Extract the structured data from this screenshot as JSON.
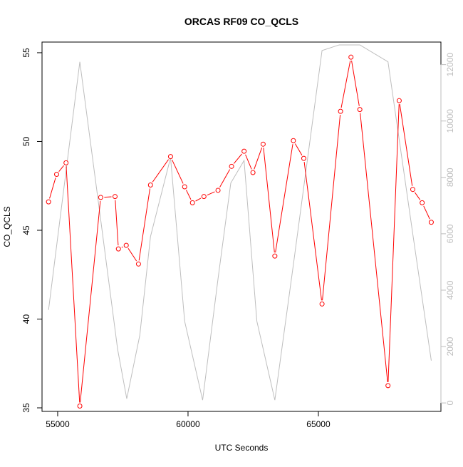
{
  "chart_data": {
    "type": "line",
    "title": "ORCAS RF09 CO_QCLS",
    "xlabel": "UTC Seconds",
    "ylabel": "CO_QCLS",
    "xlim": [
      54400,
      69700
    ],
    "ylim": [
      34.8,
      55.6
    ],
    "y2lim": [
      -300,
      12800
    ],
    "x_ticks": [
      55000,
      60000,
      65000
    ],
    "y_ticks": [
      35,
      40,
      45,
      50,
      55
    ],
    "y2_ticks": [
      0,
      2000,
      4000,
      6000,
      8000,
      10000,
      12000
    ],
    "series": [
      {
        "axis": "left",
        "color": "#ff0000",
        "markers": true,
        "points": [
          [
            54650,
            46.6
          ],
          [
            54960,
            48.15
          ],
          [
            55320,
            48.8
          ],
          [
            55850,
            35.1
          ],
          [
            56650,
            46.85
          ],
          [
            57200,
            46.9
          ],
          [
            57330,
            43.95
          ],
          [
            57630,
            44.15
          ],
          [
            58100,
            43.1
          ],
          [
            58560,
            47.55
          ],
          [
            59330,
            49.15
          ],
          [
            59870,
            47.45
          ],
          [
            60170,
            46.55
          ],
          [
            60610,
            46.9
          ],
          [
            61150,
            47.25
          ],
          [
            61670,
            48.6
          ],
          [
            62150,
            49.45
          ],
          [
            62490,
            48.25
          ],
          [
            62880,
            49.85
          ],
          [
            63330,
            43.55
          ],
          [
            64040,
            50.05
          ],
          [
            64440,
            49.05
          ],
          [
            65140,
            40.85
          ],
          [
            65850,
            51.7
          ],
          [
            66250,
            54.75
          ],
          [
            66590,
            51.8
          ],
          [
            67670,
            36.25
          ],
          [
            68100,
            52.3
          ],
          [
            68620,
            47.3
          ],
          [
            68980,
            46.55
          ],
          [
            69330,
            45.45
          ]
        ]
      },
      {
        "axis": "right",
        "color": "#bebebe",
        "markers": false,
        "points": [
          [
            54650,
            3300
          ],
          [
            55850,
            12100
          ],
          [
            56650,
            6500
          ],
          [
            57300,
            1900
          ],
          [
            57650,
            150
          ],
          [
            58150,
            2400
          ],
          [
            58560,
            5900
          ],
          [
            59330,
            8700
          ],
          [
            59870,
            2900
          ],
          [
            60560,
            100
          ],
          [
            61150,
            4400
          ],
          [
            61640,
            7800
          ],
          [
            62150,
            8600
          ],
          [
            62640,
            2900
          ],
          [
            63330,
            100
          ],
          [
            64040,
            4900
          ],
          [
            65140,
            12500
          ],
          [
            65800,
            12700
          ],
          [
            66590,
            12700
          ],
          [
            67670,
            12100
          ],
          [
            68620,
            6000
          ],
          [
            69330,
            1500
          ]
        ]
      }
    ]
  }
}
